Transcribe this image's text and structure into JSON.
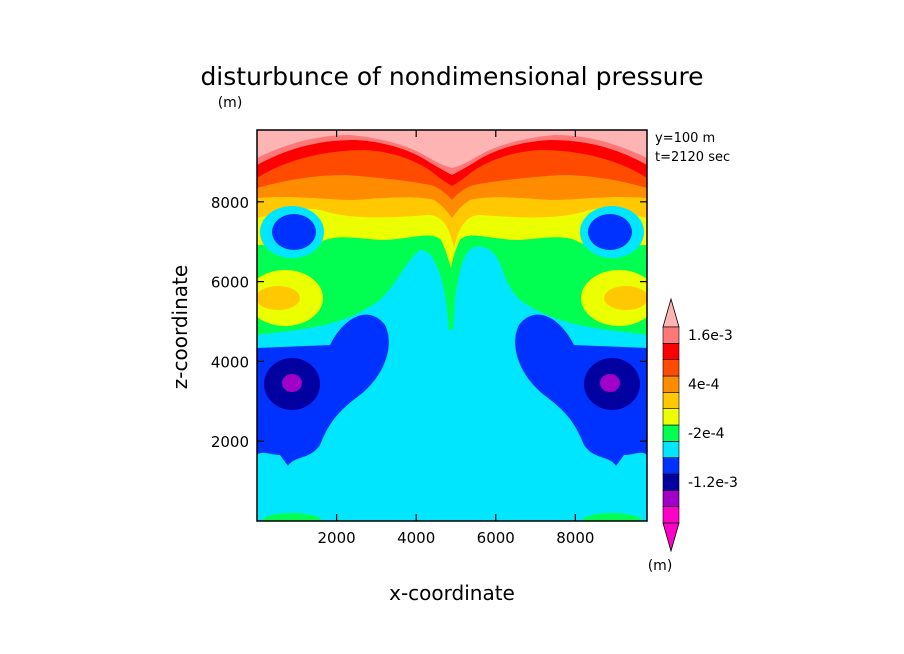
{
  "chart_data": {
    "type": "heatmap",
    "title": "disturbunce of nondimensional pressure",
    "xlabel": "x-coordinate",
    "ylabel": "z-coordinate",
    "x_unit": "(m)",
    "y_unit": "(m)",
    "colorbar_unit": "(m)",
    "info_lines": [
      "y=100 m",
      "t=2120 sec"
    ],
    "xlim": [
      0,
      9800
    ],
    "ylim": [
      0,
      9800
    ],
    "xticks": [
      "2000",
      "4000",
      "6000",
      "8000"
    ],
    "yticks": [
      "2000",
      "4000",
      "6000",
      "8000"
    ],
    "colorbar": {
      "colors": [
        "#ff00c8",
        "#a000c8",
        "#0000a0",
        "#0032ff",
        "#00e6ff",
        "#00ff50",
        "#ebff00",
        "#ffc800",
        "#ff8c00",
        "#ff4b00",
        "#ff0000",
        "#ff7878"
      ],
      "end_colors": [
        "#ff00c8",
        "#ffb4b4"
      ],
      "tick_labels": [
        {
          "label": "1.6e-3",
          "index": 11
        },
        {
          "label": "4e-4",
          "index": 8
        },
        {
          "label": "-2e-4",
          "index": 5
        },
        {
          "label": "-1.2e-3",
          "index": 2
        }
      ]
    },
    "regions": {
      "top_band": "#ffb4b4",
      "red_band": "#ff0000",
      "orange_bands": [
        "#ff4b00",
        "#ff8c00",
        "#ffc800",
        "#ebff00"
      ],
      "green_band": "#00ff50",
      "cyan_background": "#00e6ff",
      "blue_lobes": "#0032ff",
      "navy_cores": "#0000a0",
      "purple_centers": "#a000c8"
    }
  }
}
